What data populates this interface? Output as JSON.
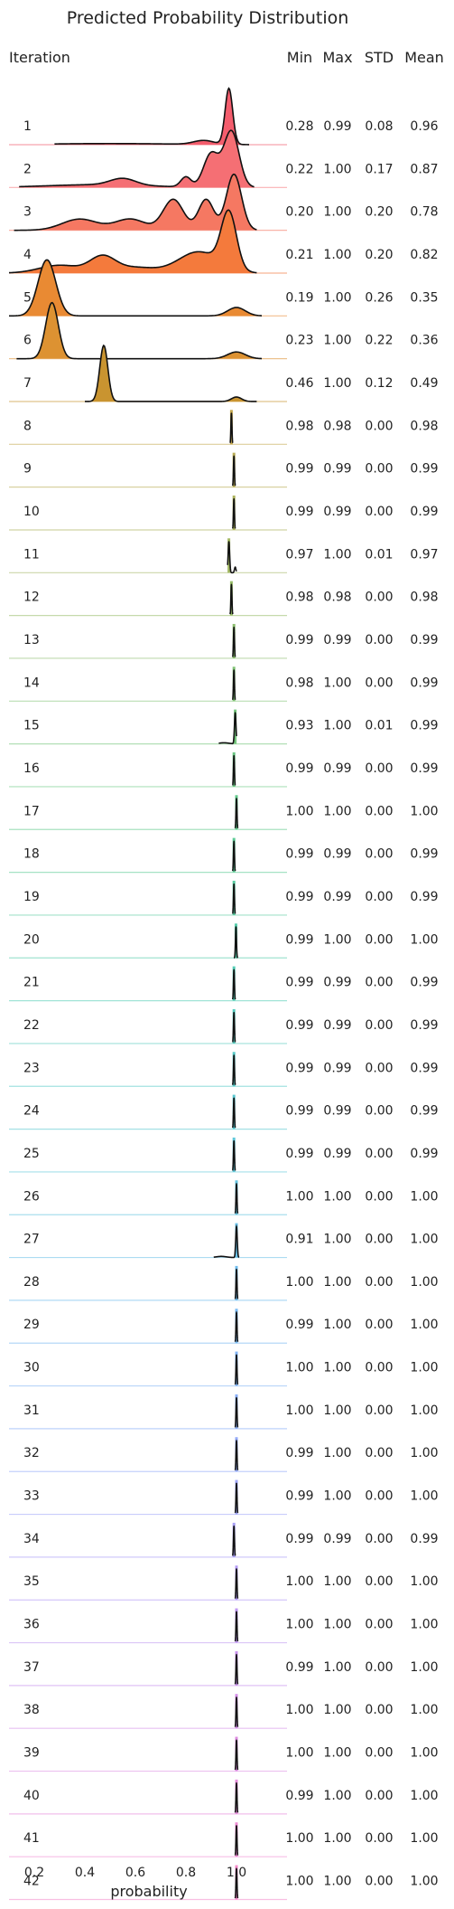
{
  "chart_data": {
    "type": "ridgeline",
    "title": "Predicted Probability Distribution",
    "xlabel": "probability",
    "xlim": [
      0.1,
      1.2
    ],
    "x_ticks": [
      0.2,
      0.4,
      0.6,
      0.8,
      1.0
    ],
    "x_tick_labels": [
      "0.2",
      "0.4",
      "0.6",
      "0.8",
      "1.0"
    ],
    "grid": false,
    "row_header": "Iteration",
    "stat_headers": [
      "Min",
      "Max",
      "STD",
      "Mean"
    ],
    "rows": [
      {
        "iteration": "1",
        "min": "0.28",
        "max": "0.99",
        "std": "0.08",
        "mean": "0.96",
        "color": "#f45d6d",
        "filled": true,
        "peaks": [
          {
            "mu": 0.97,
            "sigma": 0.015,
            "amp": 1.0
          },
          {
            "mu": 0.87,
            "sigma": 0.04,
            "amp": 0.07
          },
          {
            "mu": 0.5,
            "sigma": 0.25,
            "amp": 0.02
          }
        ],
        "range": [
          0.28,
          1.05
        ]
      },
      {
        "iteration": "2",
        "min": "0.22",
        "max": "1.00",
        "std": "0.17",
        "mean": "0.87",
        "color": "#f56f74",
        "filled": true,
        "peaks": [
          {
            "mu": 0.98,
            "sigma": 0.03,
            "amp": 1.0
          },
          {
            "mu": 0.9,
            "sigma": 0.03,
            "amp": 0.6
          },
          {
            "mu": 0.8,
            "sigma": 0.02,
            "amp": 0.18
          },
          {
            "mu": 0.55,
            "sigma": 0.05,
            "amp": 0.12
          },
          {
            "mu": 0.45,
            "sigma": 0.2,
            "amp": 0.05
          }
        ],
        "range": [
          0.14,
          1.07
        ]
      },
      {
        "iteration": "3",
        "min": "0.20",
        "max": "1.00",
        "std": "0.20",
        "mean": "0.78",
        "color": "#f57862",
        "filled": true,
        "peaks": [
          {
            "mu": 0.99,
            "sigma": 0.03,
            "amp": 1.0
          },
          {
            "mu": 0.88,
            "sigma": 0.03,
            "amp": 0.55
          },
          {
            "mu": 0.75,
            "sigma": 0.04,
            "amp": 0.55
          },
          {
            "mu": 0.58,
            "sigma": 0.06,
            "amp": 0.2
          },
          {
            "mu": 0.38,
            "sigma": 0.07,
            "amp": 0.2
          }
        ],
        "range": [
          0.12,
          1.08
        ]
      },
      {
        "iteration": "4",
        "min": "0.21",
        "max": "1.00",
        "std": "0.20",
        "mean": "0.82",
        "color": "#f47a3c",
        "filled": true,
        "peaks": [
          {
            "mu": 0.97,
            "sigma": 0.03,
            "amp": 1.0
          },
          {
            "mu": 0.85,
            "sigma": 0.08,
            "amp": 0.38
          },
          {
            "mu": 0.47,
            "sigma": 0.05,
            "amp": 0.28
          },
          {
            "mu": 0.3,
            "sigma": 0.08,
            "amp": 0.14
          },
          {
            "mu": 0.6,
            "sigma": 0.08,
            "amp": 0.1
          }
        ],
        "range": [
          0.1,
          1.08
        ]
      },
      {
        "iteration": "5",
        "min": "0.19",
        "max": "1.00",
        "std": "0.26",
        "mean": "0.35",
        "color": "#e98a33",
        "filled": true,
        "peaks": [
          {
            "mu": 0.25,
            "sigma": 0.035,
            "amp": 1.0
          },
          {
            "mu": 1.0,
            "sigma": 0.035,
            "amp": 0.15
          }
        ],
        "range": [
          0.1,
          1.1
        ]
      },
      {
        "iteration": "6",
        "min": "0.23",
        "max": "1.00",
        "std": "0.22",
        "mean": "0.36",
        "color": "#dd9232",
        "filled": true,
        "peaks": [
          {
            "mu": 0.27,
            "sigma": 0.025,
            "amp": 1.0
          },
          {
            "mu": 1.0,
            "sigma": 0.035,
            "amp": 0.12
          }
        ],
        "range": [
          0.13,
          1.1
        ]
      },
      {
        "iteration": "7",
        "min": "0.46",
        "max": "1.00",
        "std": "0.12",
        "mean": "0.49",
        "color": "#c99430",
        "filled": true,
        "peaks": [
          {
            "mu": 0.475,
            "sigma": 0.016,
            "amp": 1.0
          },
          {
            "mu": 1.0,
            "sigma": 0.02,
            "amp": 0.08
          }
        ],
        "range": [
          0.4,
          1.08
        ]
      },
      {
        "iteration": "8",
        "min": "0.98",
        "max": "0.98",
        "std": "0.00",
        "mean": "0.98",
        "color": "#c3a64d",
        "filled": false,
        "peaks": [
          {
            "mu": 0.98,
            "sigma": 0.002,
            "amp": 0.55
          }
        ],
        "range": [
          0.975,
          0.985
        ]
      },
      {
        "iteration": "9",
        "min": "0.99",
        "max": "0.99",
        "std": "0.00",
        "mean": "0.99",
        "color": "#b9ad55",
        "filled": false,
        "peaks": [
          {
            "mu": 0.99,
            "sigma": 0.002,
            "amp": 0.55
          }
        ],
        "range": [
          0.985,
          0.995
        ]
      },
      {
        "iteration": "10",
        "min": "0.99",
        "max": "0.99",
        "std": "0.00",
        "mean": "0.99",
        "color": "#adb35c",
        "filled": false,
        "peaks": [
          {
            "mu": 0.99,
            "sigma": 0.002,
            "amp": 0.55
          }
        ],
        "range": [
          0.985,
          0.995
        ]
      },
      {
        "iteration": "11",
        "min": "0.97",
        "max": "1.00",
        "std": "0.01",
        "mean": "0.97",
        "color": "#a2b862",
        "filled": false,
        "peaks": [
          {
            "mu": 0.97,
            "sigma": 0.003,
            "amp": 0.55
          },
          {
            "mu": 0.995,
            "sigma": 0.003,
            "amp": 0.1
          }
        ],
        "range": [
          0.965,
          1.0
        ]
      },
      {
        "iteration": "12",
        "min": "0.98",
        "max": "0.98",
        "std": "0.00",
        "mean": "0.98",
        "color": "#97bc68",
        "filled": false,
        "peaks": [
          {
            "mu": 0.98,
            "sigma": 0.002,
            "amp": 0.55
          }
        ],
        "range": [
          0.975,
          0.985
        ]
      },
      {
        "iteration": "13",
        "min": "0.99",
        "max": "0.99",
        "std": "0.00",
        "mean": "0.99",
        "color": "#8cbf6e",
        "filled": false,
        "peaks": [
          {
            "mu": 0.99,
            "sigma": 0.002,
            "amp": 0.55
          }
        ],
        "range": [
          0.985,
          0.995
        ]
      },
      {
        "iteration": "14",
        "min": "0.98",
        "max": "1.00",
        "std": "0.00",
        "mean": "0.99",
        "color": "#80c274",
        "filled": false,
        "peaks": [
          {
            "mu": 0.99,
            "sigma": 0.002,
            "amp": 0.55
          }
        ],
        "range": [
          0.985,
          0.995
        ]
      },
      {
        "iteration": "15",
        "min": "0.93",
        "max": "1.00",
        "std": "0.01",
        "mean": "0.99",
        "color": "#74c57b",
        "filled": false,
        "peaks": [
          {
            "mu": 0.995,
            "sigma": 0.003,
            "amp": 0.55
          },
          {
            "mu": 0.95,
            "sigma": 0.02,
            "amp": 0.02
          }
        ],
        "range": [
          0.93,
          1.0
        ]
      },
      {
        "iteration": "16",
        "min": "0.99",
        "max": "0.99",
        "std": "0.00",
        "mean": "0.99",
        "color": "#6ac782",
        "filled": false,
        "peaks": [
          {
            "mu": 0.99,
            "sigma": 0.002,
            "amp": 0.55
          }
        ],
        "range": [
          0.985,
          0.995
        ]
      },
      {
        "iteration": "17",
        "min": "1.00",
        "max": "1.00",
        "std": "0.00",
        "mean": "1.00",
        "color": "#62c98b",
        "filled": false,
        "peaks": [
          {
            "mu": 1.0,
            "sigma": 0.002,
            "amp": 0.55
          }
        ],
        "range": [
          0.995,
          1.005
        ]
      },
      {
        "iteration": "18",
        "min": "0.99",
        "max": "0.99",
        "std": "0.00",
        "mean": "0.99",
        "color": "#5ccb95",
        "filled": false,
        "peaks": [
          {
            "mu": 0.99,
            "sigma": 0.002,
            "amp": 0.55
          }
        ],
        "range": [
          0.985,
          0.995
        ]
      },
      {
        "iteration": "19",
        "min": "0.99",
        "max": "0.99",
        "std": "0.00",
        "mean": "0.99",
        "color": "#58cca0",
        "filled": false,
        "peaks": [
          {
            "mu": 0.99,
            "sigma": 0.002,
            "amp": 0.55
          }
        ],
        "range": [
          0.985,
          0.995
        ]
      },
      {
        "iteration": "20",
        "min": "0.99",
        "max": "1.00",
        "std": "0.00",
        "mean": "1.00",
        "color": "#55cdab",
        "filled": false,
        "peaks": [
          {
            "mu": 0.998,
            "sigma": 0.002,
            "amp": 0.55
          }
        ],
        "range": [
          0.99,
          1.005
        ]
      },
      {
        "iteration": "21",
        "min": "0.99",
        "max": "0.99",
        "std": "0.00",
        "mean": "0.99",
        "color": "#54cdb5",
        "filled": false,
        "peaks": [
          {
            "mu": 0.99,
            "sigma": 0.002,
            "amp": 0.55
          }
        ],
        "range": [
          0.985,
          0.995
        ]
      },
      {
        "iteration": "22",
        "min": "0.99",
        "max": "0.99",
        "std": "0.00",
        "mean": "0.99",
        "color": "#55ccbf",
        "filled": false,
        "peaks": [
          {
            "mu": 0.99,
            "sigma": 0.002,
            "amp": 0.55
          }
        ],
        "range": [
          0.985,
          0.995
        ]
      },
      {
        "iteration": "23",
        "min": "0.99",
        "max": "0.99",
        "std": "0.00",
        "mean": "0.99",
        "color": "#57cbc8",
        "filled": false,
        "peaks": [
          {
            "mu": 0.99,
            "sigma": 0.002,
            "amp": 0.55
          }
        ],
        "range": [
          0.985,
          0.995
        ]
      },
      {
        "iteration": "24",
        "min": "0.99",
        "max": "0.99",
        "std": "0.00",
        "mean": "0.99",
        "color": "#5ac9d1",
        "filled": false,
        "peaks": [
          {
            "mu": 0.99,
            "sigma": 0.002,
            "amp": 0.55
          }
        ],
        "range": [
          0.985,
          0.995
        ]
      },
      {
        "iteration": "25",
        "min": "0.99",
        "max": "0.99",
        "std": "0.00",
        "mean": "0.99",
        "color": "#5ec7d9",
        "filled": false,
        "peaks": [
          {
            "mu": 0.99,
            "sigma": 0.002,
            "amp": 0.55
          }
        ],
        "range": [
          0.985,
          0.995
        ]
      },
      {
        "iteration": "26",
        "min": "1.00",
        "max": "1.00",
        "std": "0.00",
        "mean": "1.00",
        "color": "#63c4e1",
        "filled": false,
        "peaks": [
          {
            "mu": 1.0,
            "sigma": 0.002,
            "amp": 0.55
          }
        ],
        "range": [
          0.995,
          1.005
        ]
      },
      {
        "iteration": "27",
        "min": "0.91",
        "max": "1.00",
        "std": "0.00",
        "mean": "1.00",
        "color": "#69c1e8",
        "filled": false,
        "peaks": [
          {
            "mu": 1.0,
            "sigma": 0.003,
            "amp": 0.55
          },
          {
            "mu": 0.94,
            "sigma": 0.02,
            "amp": 0.02
          }
        ],
        "range": [
          0.91,
          1.01
        ]
      },
      {
        "iteration": "28",
        "min": "1.00",
        "max": "1.00",
        "std": "0.00",
        "mean": "1.00",
        "color": "#70bdee",
        "filled": false,
        "peaks": [
          {
            "mu": 1.0,
            "sigma": 0.002,
            "amp": 0.55
          }
        ],
        "range": [
          0.995,
          1.005
        ]
      },
      {
        "iteration": "29",
        "min": "0.99",
        "max": "1.00",
        "std": "0.00",
        "mean": "1.00",
        "color": "#78b9f2",
        "filled": false,
        "peaks": [
          {
            "mu": 1.0,
            "sigma": 0.002,
            "amp": 0.55
          }
        ],
        "range": [
          0.995,
          1.005
        ]
      },
      {
        "iteration": "30",
        "min": "1.00",
        "max": "1.00",
        "std": "0.00",
        "mean": "1.00",
        "color": "#81b4f5",
        "filled": false,
        "peaks": [
          {
            "mu": 1.0,
            "sigma": 0.002,
            "amp": 0.55
          }
        ],
        "range": [
          0.995,
          1.005
        ]
      },
      {
        "iteration": "31",
        "min": "1.00",
        "max": "1.00",
        "std": "0.00",
        "mean": "1.00",
        "color": "#8aaff7",
        "filled": false,
        "peaks": [
          {
            "mu": 1.0,
            "sigma": 0.002,
            "amp": 0.55
          }
        ],
        "range": [
          0.995,
          1.005
        ]
      },
      {
        "iteration": "32",
        "min": "0.99",
        "max": "1.00",
        "std": "0.00",
        "mean": "1.00",
        "color": "#94aaf8",
        "filled": false,
        "peaks": [
          {
            "mu": 1.0,
            "sigma": 0.002,
            "amp": 0.55
          }
        ],
        "range": [
          0.995,
          1.005
        ]
      },
      {
        "iteration": "33",
        "min": "0.99",
        "max": "1.00",
        "std": "0.00",
        "mean": "1.00",
        "color": "#9ea5f8",
        "filled": false,
        "peaks": [
          {
            "mu": 1.0,
            "sigma": 0.002,
            "amp": 0.55
          }
        ],
        "range": [
          0.995,
          1.005
        ]
      },
      {
        "iteration": "34",
        "min": "0.99",
        "max": "0.99",
        "std": "0.00",
        "mean": "0.99",
        "color": "#a9a0f7",
        "filled": false,
        "peaks": [
          {
            "mu": 0.99,
            "sigma": 0.002,
            "amp": 0.55
          }
        ],
        "range": [
          0.985,
          0.995
        ]
      },
      {
        "iteration": "35",
        "min": "1.00",
        "max": "1.00",
        "std": "0.00",
        "mean": "1.00",
        "color": "#b49bf5",
        "filled": false,
        "peaks": [
          {
            "mu": 1.0,
            "sigma": 0.002,
            "amp": 0.55
          }
        ],
        "range": [
          0.995,
          1.005
        ]
      },
      {
        "iteration": "36",
        "min": "1.00",
        "max": "1.00",
        "std": "0.00",
        "mean": "1.00",
        "color": "#bf96f2",
        "filled": false,
        "peaks": [
          {
            "mu": 1.0,
            "sigma": 0.002,
            "amp": 0.55
          }
        ],
        "range": [
          0.995,
          1.005
        ]
      },
      {
        "iteration": "37",
        "min": "0.99",
        "max": "1.00",
        "std": "0.00",
        "mean": "1.00",
        "color": "#ca92ee",
        "filled": false,
        "peaks": [
          {
            "mu": 1.0,
            "sigma": 0.002,
            "amp": 0.55
          }
        ],
        "range": [
          0.995,
          1.005
        ]
      },
      {
        "iteration": "38",
        "min": "1.00",
        "max": "1.00",
        "std": "0.00",
        "mean": "1.00",
        "color": "#d48fe8",
        "filled": false,
        "peaks": [
          {
            "mu": 1.0,
            "sigma": 0.002,
            "amp": 0.55
          }
        ],
        "range": [
          0.995,
          1.005
        ]
      },
      {
        "iteration": "39",
        "min": "1.00",
        "max": "1.00",
        "std": "0.00",
        "mean": "1.00",
        "color": "#de8de2",
        "filled": false,
        "peaks": [
          {
            "mu": 1.0,
            "sigma": 0.002,
            "amp": 0.55
          }
        ],
        "range": [
          0.995,
          1.005
        ]
      },
      {
        "iteration": "40",
        "min": "0.99",
        "max": "1.00",
        "std": "0.00",
        "mean": "1.00",
        "color": "#e78bdb",
        "filled": false,
        "peaks": [
          {
            "mu": 1.0,
            "sigma": 0.002,
            "amp": 0.55
          }
        ],
        "range": [
          0.995,
          1.005
        ]
      },
      {
        "iteration": "41",
        "min": "1.00",
        "max": "1.00",
        "std": "0.00",
        "mean": "1.00",
        "color": "#ef8ad3",
        "filled": false,
        "peaks": [
          {
            "mu": 1.0,
            "sigma": 0.002,
            "amp": 0.55
          }
        ],
        "range": [
          0.995,
          1.005
        ]
      },
      {
        "iteration": "42",
        "min": "1.00",
        "max": "1.00",
        "std": "0.00",
        "mean": "1.00",
        "color": "#f58acb",
        "filled": false,
        "peaks": [
          {
            "mu": 1.0,
            "sigma": 0.002,
            "amp": 0.55
          }
        ],
        "range": [
          0.995,
          1.005
        ]
      }
    ]
  }
}
